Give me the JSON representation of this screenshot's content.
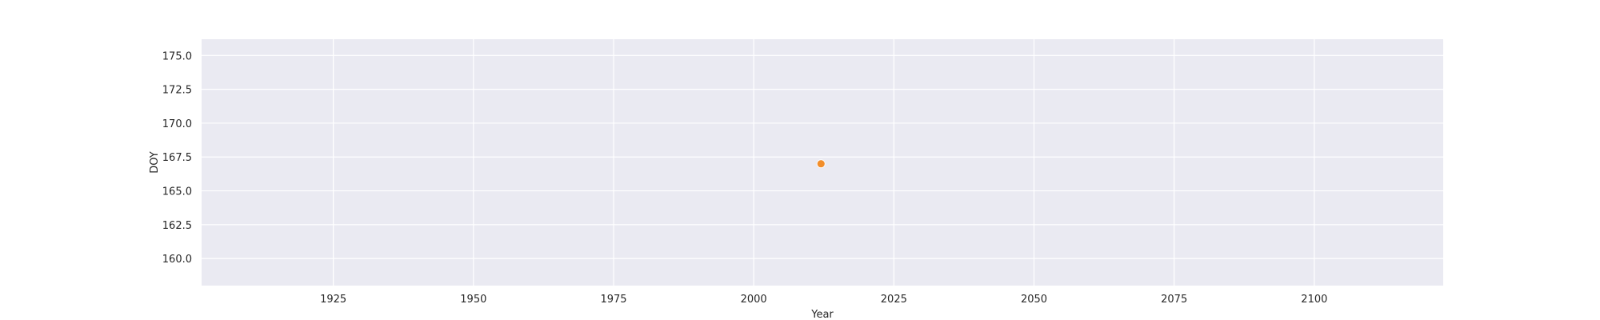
{
  "chart_data": {
    "type": "scatter",
    "title": "",
    "xlabel": "Year",
    "ylabel": "DOY",
    "xlim": [
      1901.5,
      2123
    ],
    "ylim": [
      158.0,
      176.2
    ],
    "xticks": [
      1925,
      1950,
      1975,
      2000,
      2025,
      2050,
      2075,
      2100
    ],
    "yticks": [
      160.0,
      162.5,
      165.0,
      167.5,
      170.0,
      172.5,
      175.0
    ],
    "grid": true,
    "legend": "none",
    "colors": {
      "background": "#eaeaf2",
      "grid": "#ffffff",
      "point": "#f28e2b",
      "text": "#262626"
    },
    "series": [
      {
        "x": [
          2012
        ],
        "y": [
          167.0
        ]
      }
    ]
  }
}
